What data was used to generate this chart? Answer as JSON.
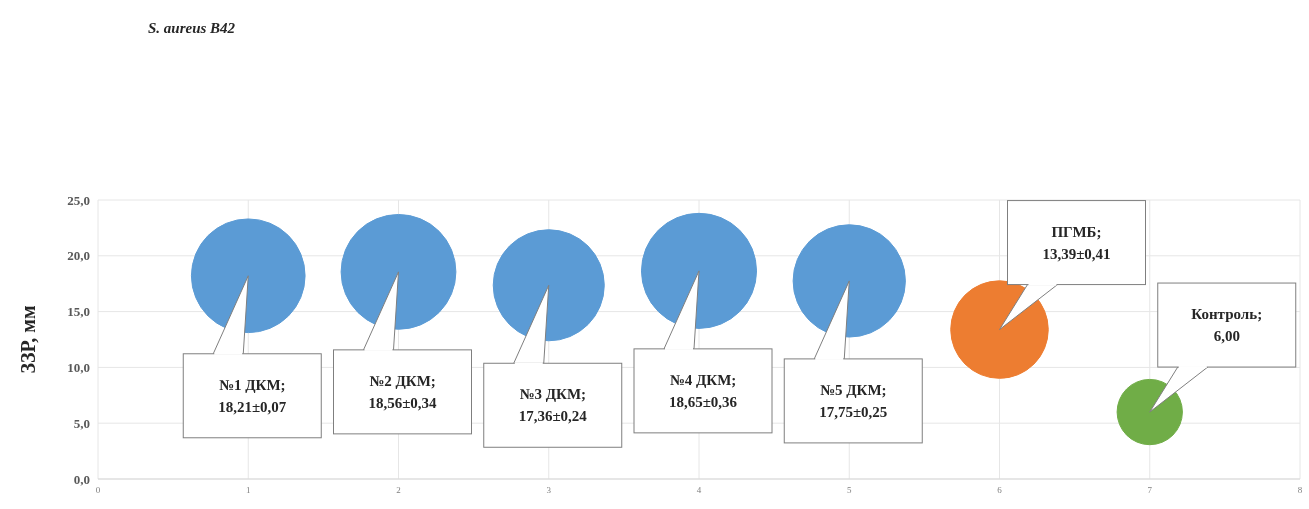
{
  "chart_data": {
    "type": "bubble",
    "title": "S. aureus B42",
    "ylabel": "ЗЗР, мм",
    "x": [
      1,
      2,
      3,
      4,
      5,
      6,
      7
    ],
    "values": [
      18.21,
      18.56,
      17.36,
      18.65,
      17.75,
      13.39,
      6.0
    ],
    "sizes": [
      0.976,
      0.995,
      0.931,
      1,
      0.952,
      0.718,
      0.322
    ],
    "colors": [
      "#5b9bd5",
      "#5b9bd5",
      "#5b9bd5",
      "#5b9bd5",
      "#5b9bd5",
      "#ed7d31",
      "#70ad47"
    ],
    "value_labels": [
      "№1 ДКМ; 18,21±0,07",
      "№2 ДКМ; 18,56±0,34",
      "№3 ДКМ; 17,36±0,24",
      "№4 ДКМ; 18,65±0,36",
      "№5 ДКМ; 17,75±0,25",
      "ПГМБ; 13,39±0,41",
      "Контроль; 6,00"
    ],
    "xlim": [
      0,
      8
    ],
    "xticks": [
      0,
      1,
      2,
      3,
      4,
      5,
      6,
      7,
      8
    ],
    "ylim": [
      0,
      25
    ],
    "yticks": [
      {
        "value": 0,
        "label": "0,0"
      },
      {
        "value": 5,
        "label": "5,0"
      },
      {
        "value": 10,
        "label": "10,0"
      },
      {
        "value": 15,
        "label": "15,0"
      },
      {
        "value": 20,
        "label": "20,0"
      },
      {
        "value": 25,
        "label": "25,0"
      }
    ],
    "grid": true,
    "legend": false
  }
}
